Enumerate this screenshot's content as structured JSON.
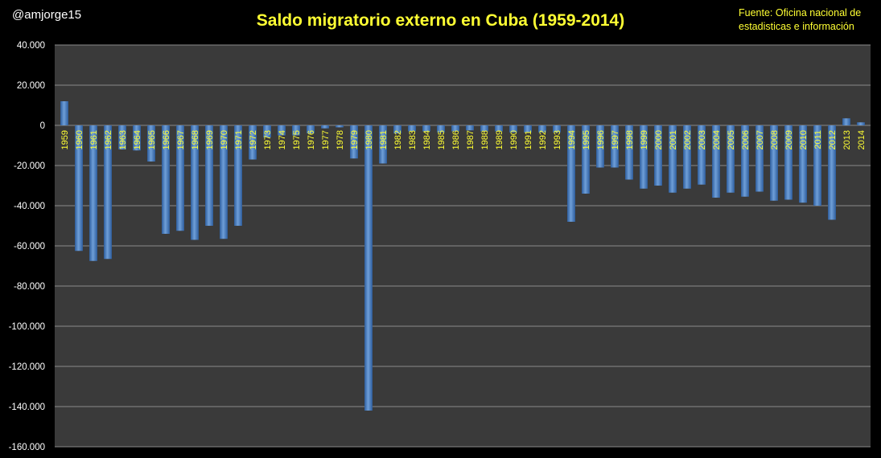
{
  "handle": "@amjorge15",
  "title": "Saldo migratorio externo en Cuba (1959-2014)",
  "source_line1": "Fuente: Oficina nacional de",
  "source_line2": "estadisticas e información",
  "colors": {
    "background": "#000000",
    "plot_area": "#3a3a3a",
    "gridline": "#8a8a8a",
    "bar": "#2e5e9e",
    "bar_highlight": "#6f9fd8",
    "title": "#ffff33",
    "year_labels": "#ffff33",
    "axis_labels": "#ffffff"
  },
  "chart_data": {
    "type": "bar",
    "title": "Saldo migratorio externo en Cuba (1959-2014)",
    "xlabel": "",
    "ylabel": "",
    "ylim": [
      -160000,
      40000
    ],
    "grid": true,
    "ytick_values": [
      40000,
      20000,
      0,
      -20000,
      -40000,
      -60000,
      -80000,
      -100000,
      -120000,
      -140000,
      -160000
    ],
    "ytick_labels": [
      "40.000",
      "20.000",
      "0",
      "-20.000",
      "-40.000",
      "-60.000",
      "-80.000",
      "-100.000",
      "-120.000",
      "-140.000",
      "-160.000"
    ],
    "categories": [
      "1959",
      "1960",
      "1961",
      "1962",
      "1963",
      "1964",
      "1965",
      "1966",
      "1967",
      "1968",
      "1969",
      "1970",
      "1971",
      "1972",
      "1973",
      "1974",
      "1975",
      "1976",
      "1977",
      "1978",
      "1979",
      "1980",
      "1981",
      "1982",
      "1983",
      "1984",
      "1985",
      "1986",
      "1987",
      "1988",
      "1989",
      "1990",
      "1991",
      "1992",
      "1993",
      "1994",
      "1995",
      "1996",
      "1997",
      "1998",
      "1999",
      "2000",
      "2001",
      "2002",
      "2003",
      "2004",
      "2005",
      "2006",
      "2007",
      "2008",
      "2009",
      "2010",
      "2011",
      "2012",
      "2013",
      "2014"
    ],
    "values": [
      12000,
      -62500,
      -67500,
      -66500,
      -12000,
      -12500,
      -18000,
      -54000,
      -52500,
      -57000,
      -50000,
      -56500,
      -50000,
      -17000,
      -6000,
      -5000,
      -5000,
      -4000,
      -1500,
      -1000,
      -16500,
      -142000,
      -19000,
      -4000,
      -3000,
      -3000,
      -3500,
      -3000,
      -2500,
      -3000,
      -3000,
      -3500,
      -3500,
      -3500,
      -3500,
      -48000,
      -34000,
      -21000,
      -21000,
      -27000,
      -31500,
      -30000,
      -33500,
      -31500,
      -29500,
      -36000,
      -33500,
      -35500,
      -33000,
      -37500,
      -37000,
      -38500,
      -40000,
      -47000,
      3500,
      1500
    ]
  }
}
